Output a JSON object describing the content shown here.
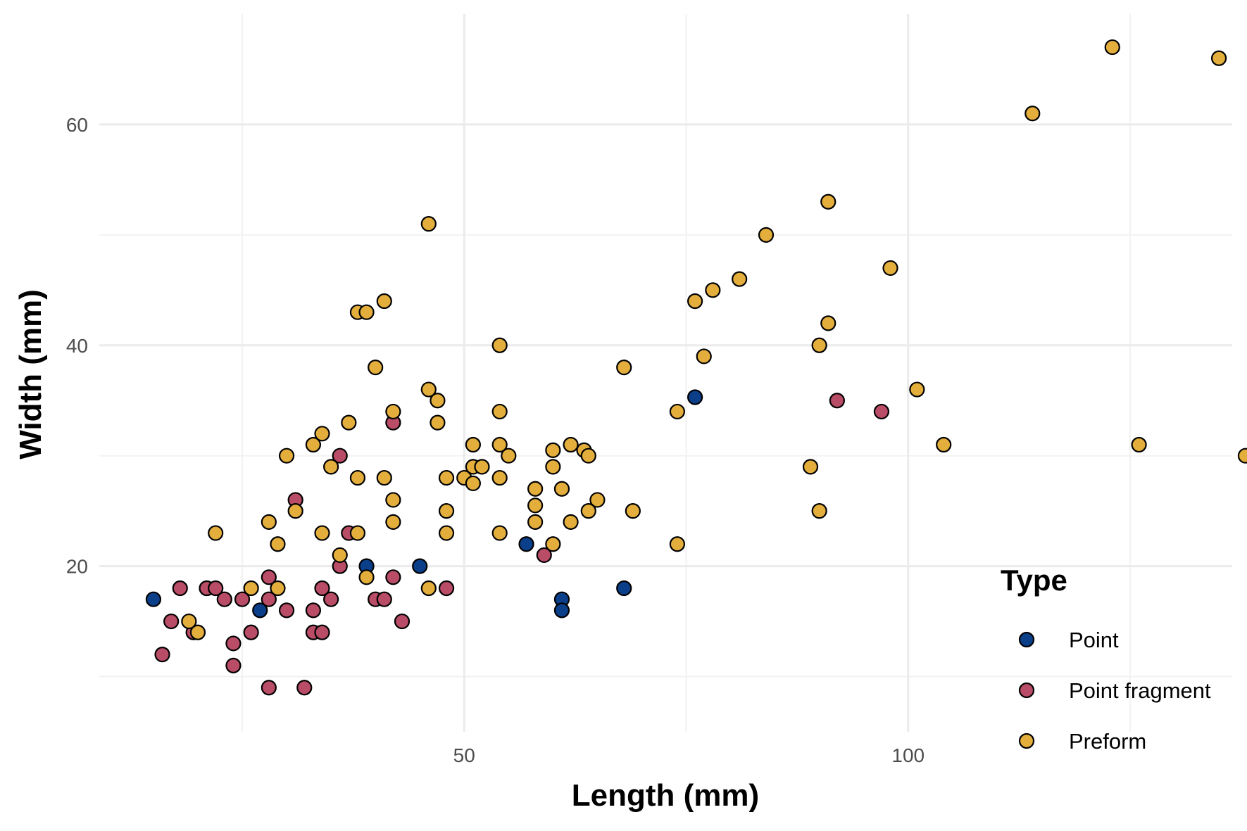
{
  "chart_data": {
    "type": "scatter",
    "xlabel": "Length (mm)",
    "ylabel": "Width (mm)",
    "xlim": [
      8.9,
      136.5
    ],
    "ylim": [
      5.0,
      70.0
    ],
    "x_ticks": [
      50,
      100
    ],
    "y_ticks": [
      20,
      40,
      60
    ],
    "x_minor_gridlines": [
      25,
      75,
      125
    ],
    "y_minor_gridlines": [
      10,
      30,
      50
    ],
    "grid": true,
    "legend": {
      "title": "Type",
      "position": "bottom-right"
    },
    "series": [
      {
        "name": "Point",
        "color": "#0b3f8a",
        "points": [
          [
            15.0,
            17.0
          ],
          [
            21.0,
            18.0
          ],
          [
            27.0,
            16.0
          ],
          [
            39.0,
            20.0
          ],
          [
            45.0,
            20.0
          ],
          [
            57.0,
            22.0
          ],
          [
            61.0,
            17.0
          ],
          [
            61.0,
            16.0
          ],
          [
            68.0,
            18.0
          ],
          [
            76.0,
            35.3
          ]
        ]
      },
      {
        "name": "Point fragment",
        "color": "#b94c66",
        "points": [
          [
            16.0,
            12.0
          ],
          [
            17.0,
            15.0
          ],
          [
            18.0,
            18.0
          ],
          [
            19.5,
            14.0
          ],
          [
            21.0,
            18.0
          ],
          [
            22.0,
            18.0
          ],
          [
            23.0,
            17.0
          ],
          [
            24.0,
            13.0
          ],
          [
            24.0,
            11.0
          ],
          [
            25.0,
            17.0
          ],
          [
            26.0,
            14.0
          ],
          [
            28.0,
            19.0
          ],
          [
            28.0,
            17.0
          ],
          [
            28.0,
            9.0
          ],
          [
            30.0,
            16.0
          ],
          [
            31.0,
            26.0
          ],
          [
            32.0,
            9.0
          ],
          [
            33.0,
            16.0
          ],
          [
            33.0,
            14.0
          ],
          [
            34.0,
            14.0
          ],
          [
            34.0,
            18.0
          ],
          [
            35.0,
            17.0
          ],
          [
            36.0,
            20.0
          ],
          [
            36.0,
            30.0
          ],
          [
            37.0,
            23.0
          ],
          [
            40.0,
            17.0
          ],
          [
            41.0,
            17.0
          ],
          [
            42.0,
            19.0
          ],
          [
            42.0,
            33.0
          ],
          [
            43.0,
            15.0
          ],
          [
            48.0,
            18.0
          ],
          [
            59.0,
            21.0
          ],
          [
            92.0,
            35.0
          ],
          [
            97.0,
            34.0
          ]
        ]
      },
      {
        "name": "Preform",
        "color": "#e3ae3c",
        "points": [
          [
            19.0,
            15.0
          ],
          [
            20.0,
            14.0
          ],
          [
            22.0,
            23.0
          ],
          [
            26.0,
            18.0
          ],
          [
            28.0,
            24.0
          ],
          [
            29.0,
            22.0
          ],
          [
            29.0,
            18.0
          ],
          [
            30.0,
            30.0
          ],
          [
            31.0,
            25.0
          ],
          [
            33.0,
            31.0
          ],
          [
            34.0,
            32.0
          ],
          [
            34.0,
            23.0
          ],
          [
            35.0,
            29.0
          ],
          [
            36.0,
            21.0
          ],
          [
            37.0,
            33.0
          ],
          [
            38.0,
            28.0
          ],
          [
            38.0,
            23.0
          ],
          [
            38.0,
            43.0
          ],
          [
            39.0,
            43.0
          ],
          [
            40.0,
            38.0
          ],
          [
            41.0,
            44.0
          ],
          [
            41.0,
            28.0
          ],
          [
            42.0,
            34.0
          ],
          [
            42.0,
            26.0
          ],
          [
            42.0,
            24.0
          ],
          [
            39.0,
            19.0
          ],
          [
            46.0,
            51.0
          ],
          [
            46.0,
            36.0
          ],
          [
            46.0,
            18.0
          ],
          [
            47.0,
            35.0
          ],
          [
            47.0,
            33.0
          ],
          [
            48.0,
            28.0
          ],
          [
            48.0,
            25.0
          ],
          [
            48.0,
            23.0
          ],
          [
            50.0,
            28.0
          ],
          [
            51.0,
            27.5
          ],
          [
            51.0,
            31.0
          ],
          [
            51.0,
            29.0
          ],
          [
            52.0,
            29.0
          ],
          [
            54.0,
            40.0
          ],
          [
            54.0,
            34.0
          ],
          [
            54.0,
            31.0
          ],
          [
            54.0,
            28.0
          ],
          [
            54.0,
            23.0
          ],
          [
            55.0,
            30.0
          ],
          [
            58.0,
            27.0
          ],
          [
            58.0,
            25.5
          ],
          [
            58.0,
            24.0
          ],
          [
            60.0,
            30.5
          ],
          [
            60.0,
            29.0
          ],
          [
            60.0,
            22.0
          ],
          [
            61.0,
            27.0
          ],
          [
            62.0,
            31.0
          ],
          [
            62.0,
            24.0
          ],
          [
            63.5,
            30.5
          ],
          [
            64.0,
            30.0
          ],
          [
            64.0,
            25.0
          ],
          [
            65.0,
            26.0
          ],
          [
            68.0,
            38.0
          ],
          [
            69.0,
            25.0
          ],
          [
            74.0,
            34.0
          ],
          [
            74.0,
            22.0
          ],
          [
            76.0,
            44.0
          ],
          [
            77.0,
            39.0
          ],
          [
            78.0,
            45.0
          ],
          [
            81.0,
            46.0
          ],
          [
            84.0,
            50.0
          ],
          [
            89.0,
            29.0
          ],
          [
            90.0,
            40.0
          ],
          [
            90.0,
            25.0
          ],
          [
            91.0,
            53.0
          ],
          [
            91.0,
            42.0
          ],
          [
            98.0,
            47.0
          ],
          [
            101.0,
            36.0
          ],
          [
            104.0,
            31.0
          ],
          [
            114.0,
            61.0
          ],
          [
            123.0,
            67.0
          ],
          [
            126.0,
            31.0
          ],
          [
            135.0,
            66.0
          ],
          [
            138.0,
            30.0
          ]
        ]
      }
    ]
  }
}
